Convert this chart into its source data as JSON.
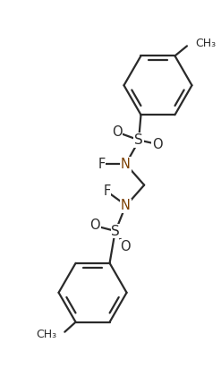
{
  "bg_color": "#ffffff",
  "line_color": "#2a2a2a",
  "text_color": "#2a2a2a",
  "N_color": "#7B3F00",
  "lw": 1.6,
  "font_size": 10.5,
  "figsize": [
    2.47,
    4.21
  ],
  "dpi": 100,
  "xlim": [
    0,
    10
  ],
  "ylim": [
    0,
    17
  ]
}
